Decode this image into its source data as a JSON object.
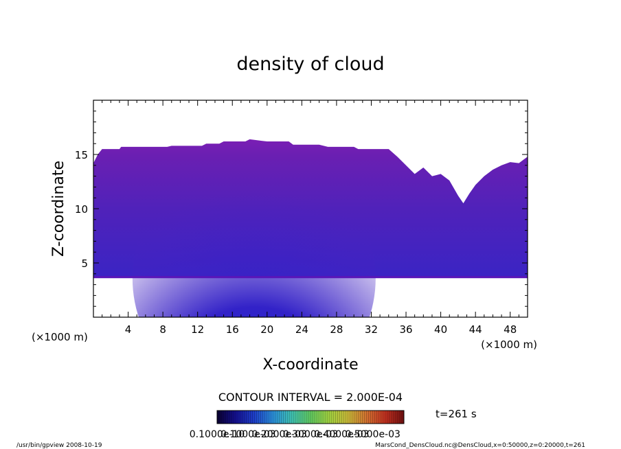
{
  "chart_data": {
    "type": "heatmap",
    "title": "density of cloud",
    "xlabel": "X-coordinate",
    "ylabel": "Z-coordinate",
    "x_unit": "(×1000 m)",
    "y_unit": "(×1000 m)",
    "xlim": [
      0,
      50
    ],
    "ylim": [
      0,
      20
    ],
    "x_ticks": [
      "4",
      "8",
      "12",
      "16",
      "20",
      "24",
      "28",
      "32",
      "36",
      "40",
      "44",
      "48"
    ],
    "y_ticks": [
      "5",
      "10",
      "15"
    ],
    "x_tick_values": [
      4,
      8,
      12,
      16,
      20,
      24,
      28,
      32,
      36,
      40,
      44,
      48
    ],
    "y_tick_values": [
      5,
      10,
      15
    ],
    "cloud_base": 3.6,
    "cloud_top": [
      {
        "x": 0,
        "z": 14.2
      },
      {
        "x": 0.5,
        "z": 15.0
      },
      {
        "x": 1,
        "z": 15.5
      },
      {
        "x": 3,
        "z": 15.5
      },
      {
        "x": 3.2,
        "z": 15.7
      },
      {
        "x": 8.5,
        "z": 15.7
      },
      {
        "x": 9,
        "z": 15.8
      },
      {
        "x": 12.5,
        "z": 15.8
      },
      {
        "x": 13,
        "z": 16.0
      },
      {
        "x": 14.5,
        "z": 16.0
      },
      {
        "x": 15,
        "z": 16.2
      },
      {
        "x": 17.5,
        "z": 16.2
      },
      {
        "x": 18,
        "z": 16.4
      },
      {
        "x": 19,
        "z": 16.3
      },
      {
        "x": 20,
        "z": 16.2
      },
      {
        "x": 22.5,
        "z": 16.2
      },
      {
        "x": 23,
        "z": 15.9
      },
      {
        "x": 26,
        "z": 15.9
      },
      {
        "x": 27,
        "z": 15.7
      },
      {
        "x": 30,
        "z": 15.7
      },
      {
        "x": 30.5,
        "z": 15.5
      },
      {
        "x": 34,
        "z": 15.5
      },
      {
        "x": 35,
        "z": 14.8
      },
      {
        "x": 36,
        "z": 14.0
      },
      {
        "x": 37,
        "z": 13.2
      },
      {
        "x": 38,
        "z": 13.8
      },
      {
        "x": 39,
        "z": 13.0
      },
      {
        "x": 40,
        "z": 13.2
      },
      {
        "x": 41,
        "z": 12.6
      },
      {
        "x": 42,
        "z": 11.2
      },
      {
        "x": 42.6,
        "z": 10.5
      },
      {
        "x": 43.3,
        "z": 11.4
      },
      {
        "x": 44,
        "z": 12.2
      },
      {
        "x": 45,
        "z": 13.0
      },
      {
        "x": 46,
        "z": 13.6
      },
      {
        "x": 47,
        "z": 14.0
      },
      {
        "x": 48,
        "z": 14.3
      },
      {
        "x": 49,
        "z": 14.2
      },
      {
        "x": 50,
        "z": 14.8
      }
    ],
    "core_x": 18.5,
    "contour_interval": "CONTOUR INTERVAL = 2.000E-04",
    "colorbar_labels": [
      "0.1000e-10",
      "0.1000e-03",
      "0.2000e-03",
      "0.3000e-03",
      "0.4000e-03",
      "0.5000e-03"
    ],
    "colorbar_label_values": [
      0.0,
      0.0001,
      0.0002,
      0.0003,
      0.0004,
      0.0005
    ],
    "colorbar_range": [
      0.0,
      0.0006
    ],
    "colorbar_colors": [
      "#0a0030",
      "#141090",
      "#1e3fc8",
      "#2a8ed8",
      "#3fc0b0",
      "#60c860",
      "#a0d040",
      "#c8b838",
      "#d07030",
      "#c03020",
      "#701010"
    ],
    "fill_colors": {
      "outer": "#6a1fb0",
      "mid": "#4a22c0",
      "core": "#1636e0"
    }
  },
  "annotations": {
    "time": "t=261 s",
    "program": "/usr/bin/gpview   2008-10-19",
    "source": "MarsCond_DensCloud.nc@DensCloud,x=0:50000,z=0:20000,t=261"
  }
}
